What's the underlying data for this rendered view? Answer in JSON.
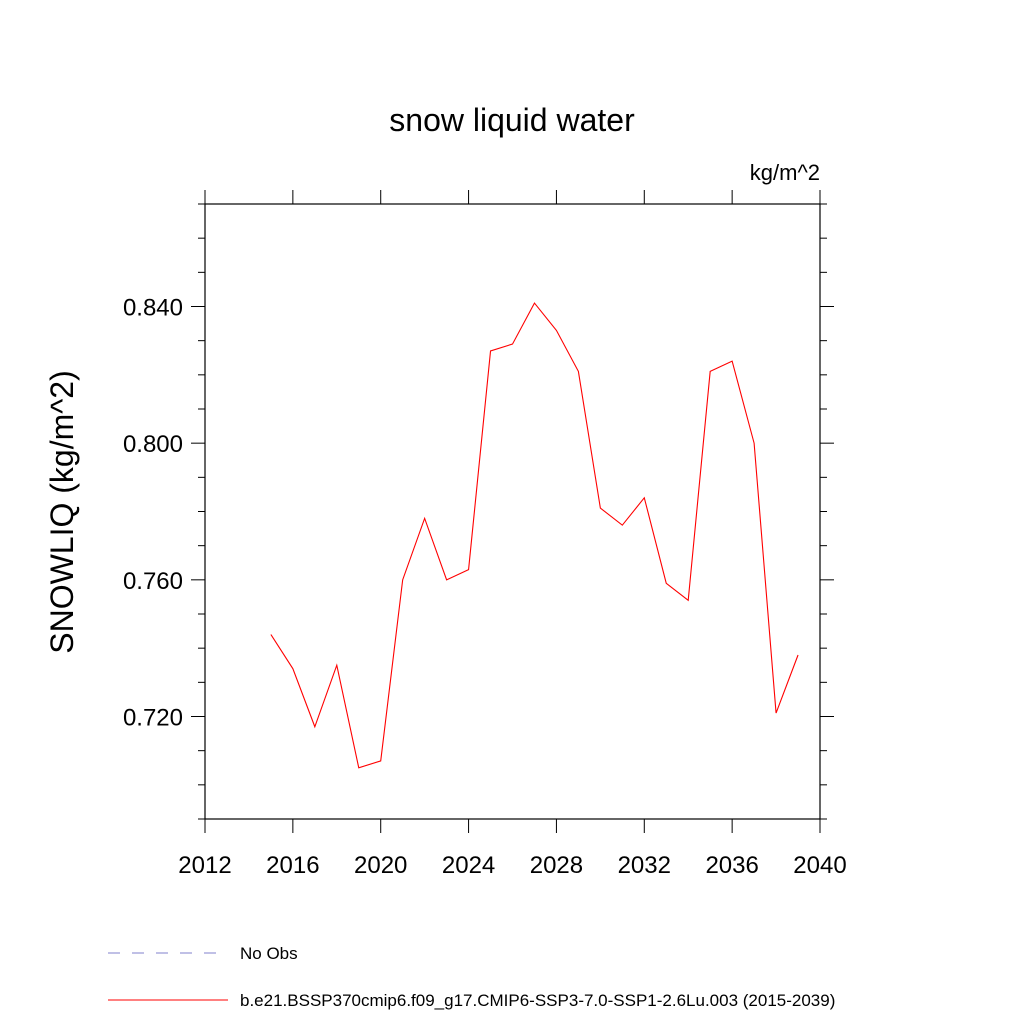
{
  "chart_data": {
    "type": "line",
    "title": "snow liquid water",
    "units_label": "kg/m^2",
    "ylabel": "SNOWLIQ  (kg/m^2)",
    "xlabel": "",
    "xlim": [
      2012,
      2040
    ],
    "ylim": [
      0.69,
      0.87
    ],
    "x_ticks": [
      2012,
      2016,
      2020,
      2024,
      2028,
      2032,
      2036,
      2040
    ],
    "x_tick_labels": [
      "2012",
      "2016",
      "2020",
      "2024",
      "2028",
      "2032",
      "2036",
      "2040"
    ],
    "y_ticks": [
      0.72,
      0.76,
      0.8,
      0.84
    ],
    "y_tick_labels": [
      "0.720",
      "0.760",
      "0.800",
      "0.840"
    ],
    "grid": false,
    "legend_position": "bottom",
    "series": [
      {
        "name": "b.e21.BSSP370cmip6.f09_g17.CMIP6-SSP3-7.0-SSP1-2.6Lu.003 (2015-2039)",
        "color": "#ff0000",
        "style": "solid",
        "x": [
          2015,
          2016,
          2017,
          2018,
          2019,
          2020,
          2021,
          2022,
          2023,
          2024,
          2025,
          2026,
          2027,
          2028,
          2029,
          2030,
          2031,
          2032,
          2033,
          2034,
          2035,
          2036,
          2037,
          2038,
          2039
        ],
        "y": [
          0.744,
          0.734,
          0.717,
          0.735,
          0.705,
          0.707,
          0.76,
          0.778,
          0.76,
          0.763,
          0.827,
          0.829,
          0.841,
          0.833,
          0.821,
          0.781,
          0.776,
          0.784,
          0.759,
          0.754,
          0.821,
          0.824,
          0.8,
          0.721,
          0.738
        ]
      },
      {
        "name": "No Obs",
        "color": "#8080cc",
        "style": "dashed",
        "x": [],
        "y": []
      }
    ]
  }
}
